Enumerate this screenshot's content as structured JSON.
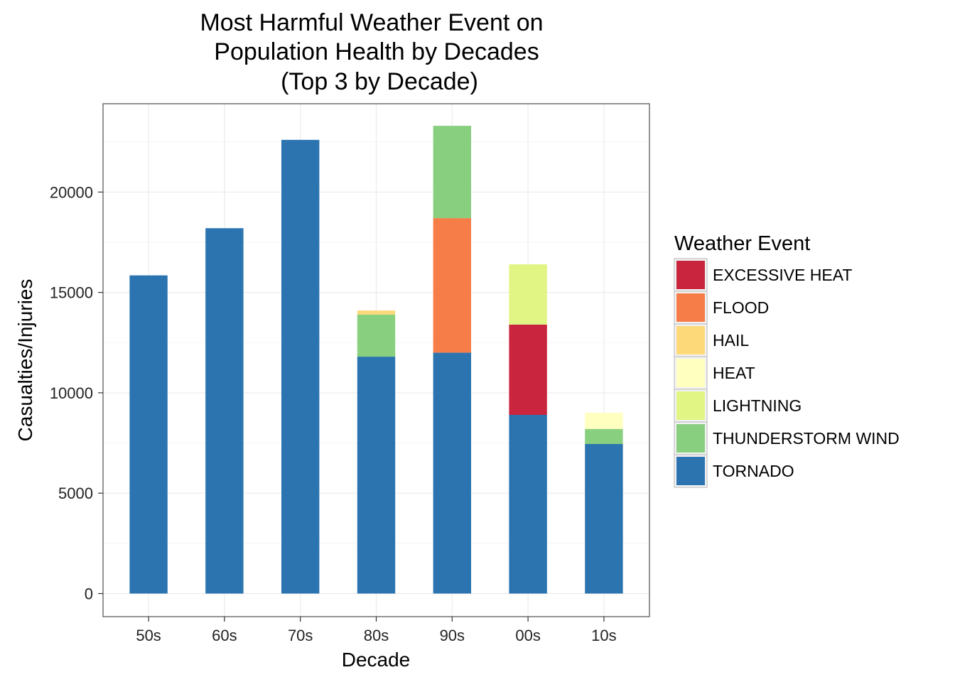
{
  "chart_data": {
    "type": "bar",
    "stacked": true,
    "title_lines": [
      "Most Harmful Weather Event on",
      "Population Health by Decades",
      "(Top 3 by Decade)"
    ],
    "xlabel": "Decade",
    "ylabel": "Casualties/Injuries",
    "categories": [
      "50s",
      "60s",
      "70s",
      "80s",
      "90s",
      "00s",
      "10s"
    ],
    "yticks": [
      0,
      5000,
      10000,
      15000,
      20000
    ],
    "ylim": [
      -1150,
      24400
    ],
    "grid": true,
    "legend": {
      "title": "Weather Event",
      "position": "right",
      "items": [
        "EXCESSIVE HEAT",
        "FLOOD",
        "HAIL",
        "HEAT",
        "LIGHTNING",
        "THUNDERSTORM WIND",
        "TORNADO"
      ]
    },
    "stack_order": [
      "TORNADO",
      "EXCESSIVE HEAT",
      "FLOOD",
      "THUNDERSTORM WIND",
      "HAIL",
      "LIGHTNING",
      "HEAT"
    ],
    "series": [
      {
        "name": "EXCESSIVE HEAT",
        "color": "#c9253e",
        "values": [
          0,
          0,
          0,
          0,
          0,
          4500,
          0
        ]
      },
      {
        "name": "FLOOD",
        "color": "#f77d48",
        "values": [
          0,
          0,
          0,
          0,
          6700,
          0,
          0
        ]
      },
      {
        "name": "HAIL",
        "color": "#fdd97a",
        "values": [
          0,
          0,
          0,
          200,
          0,
          0,
          0
        ]
      },
      {
        "name": "HEAT",
        "color": "#ffffbf",
        "values": [
          0,
          0,
          0,
          0,
          0,
          0,
          800
        ]
      },
      {
        "name": "LIGHTNING",
        "color": "#e0f584",
        "values": [
          0,
          0,
          0,
          0,
          0,
          3000,
          0
        ]
      },
      {
        "name": "THUNDERSTORM WIND",
        "color": "#88cf7f",
        "values": [
          0,
          0,
          0,
          2100,
          4600,
          0,
          750
        ]
      },
      {
        "name": "TORNADO",
        "color": "#2b74b0",
        "values": [
          15850,
          18200,
          22600,
          11800,
          12000,
          8900,
          7450
        ]
      }
    ]
  }
}
